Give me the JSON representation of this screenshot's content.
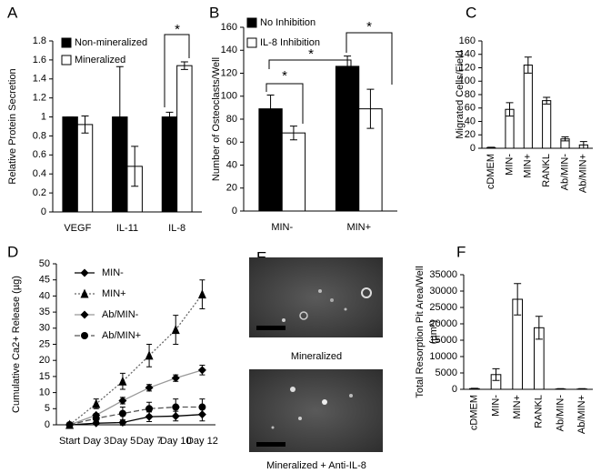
{
  "chart_data": [
    {
      "label": "A",
      "type": "bar",
      "ylabel": [
        "Relative Protein Secretion"
      ],
      "categories": [
        "VEGF",
        "IL-11",
        "IL-8"
      ],
      "series": [
        {
          "name": "Non-mineralized",
          "color": "#000000",
          "values": [
            1,
            1,
            1
          ],
          "errors": [
            0,
            0.53,
            0.05
          ]
        },
        {
          "name": "Mineralized",
          "color": "#ffffff",
          "values": [
            0.92,
            0.48,
            1.54
          ],
          "errors": [
            0.09,
            0.21,
            0.04
          ]
        }
      ],
      "ylim": [
        0,
        1.8
      ],
      "yticks": [
        0,
        0.2,
        0.4,
        0.6,
        0.8,
        1,
        1.2,
        1.4,
        1.6,
        1.8
      ],
      "annotations": [
        "*"
      ]
    },
    {
      "label": "B",
      "type": "bar",
      "ylabel": [
        "Number of Osteoclasts/Well"
      ],
      "categories": [
        "MIN-",
        "MIN+"
      ],
      "series": [
        {
          "name": "No Inhibition",
          "color": "#000000",
          "values": [
            89,
            126
          ],
          "errors": [
            12,
            9
          ]
        },
        {
          "name": "IL-8 Inhibition",
          "color": "#ffffff",
          "values": [
            68,
            89
          ],
          "errors": [
            6,
            17
          ]
        }
      ],
      "ylim": [
        0,
        160
      ],
      "yticks": [
        0,
        20,
        40,
        60,
        80,
        100,
        120,
        140,
        160
      ],
      "annotations": [
        "*",
        "*",
        "*"
      ]
    },
    {
      "label": "C",
      "type": "bar",
      "ylabel": [
        "Migrated Cells/Field"
      ],
      "categories": [
        "cDMEM",
        "MIN-",
        "MIN+",
        "RANKL",
        "Ab/MIN-",
        "Ab/MIN+"
      ],
      "series": [
        {
          "color": "#ffffff",
          "values": [
            1,
            58,
            124,
            71,
            14,
            5
          ],
          "errors": [
            0.5,
            10,
            12,
            5,
            3,
            5
          ]
        }
      ],
      "ylim": [
        0,
        160
      ],
      "yticks": [
        0,
        20,
        40,
        60,
        80,
        100,
        120,
        140,
        160
      ]
    },
    {
      "label": "D",
      "type": "line",
      "ylabel": [
        "Cumulative Ca2+ Release (µg)"
      ],
      "categories": [
        "Start",
        "Day 3",
        "Day 5",
        "Day 7",
        "Day 10",
        "Day 12"
      ],
      "series": [
        {
          "name": "MIN-",
          "color": "#000000",
          "marker": "diamond",
          "dash": "solid",
          "values": [
            0,
            0.5,
            0.7,
            2.5,
            2.7,
            3.2
          ],
          "errors": [
            0.3,
            0.5,
            0.8,
            1.5,
            1.5,
            2
          ]
        },
        {
          "name": "MIN+",
          "color": "#666666",
          "marker": "triangle",
          "dash": "dotted",
          "values": [
            0,
            6.5,
            13.5,
            21.5,
            29.5,
            40.5
          ],
          "errors": [
            0.3,
            1.5,
            2.5,
            3.5,
            4.5,
            4.5
          ]
        },
        {
          "name": "Ab/MIN-",
          "color": "#999999",
          "marker": "diamond",
          "dash": "solid",
          "values": [
            0,
            3,
            7.5,
            11.5,
            14.5,
            17
          ],
          "errors": [
            0.3,
            0.5,
            1,
            1,
            1,
            1.5
          ]
        },
        {
          "name": "Ab/MIN+",
          "color": "#555555",
          "marker": "circle",
          "dash": "dashed",
          "values": [
            0,
            2,
            3.5,
            5,
            5.5,
            5.5
          ],
          "errors": [
            0.3,
            1,
            2,
            2,
            2.5,
            2.5
          ]
        }
      ],
      "ylim": [
        0,
        50
      ],
      "yticks": [
        0,
        5,
        10,
        15,
        20,
        25,
        30,
        35,
        40,
        45,
        50
      ]
    },
    {
      "label": "F",
      "type": "bar",
      "ylabel": [
        "Total Resorption Pit Area/Well",
        "(µm²)"
      ],
      "categories": [
        "cDMEM",
        "MIN-",
        "MIN+",
        "RANKL",
        "Ab/MIN-",
        "Ab/MIN+"
      ],
      "series": [
        {
          "color": "#ffffff",
          "values": [
            200,
            4500,
            27500,
            18800,
            100,
            100
          ],
          "errors": [
            100,
            1800,
            4800,
            3500,
            100,
            100
          ]
        }
      ],
      "ylim": [
        0,
        35000
      ],
      "yticks": [
        0,
        5000,
        10000,
        15000,
        20000,
        25000,
        30000,
        35000
      ]
    }
  ],
  "panel_e": {
    "label": "E",
    "captions": [
      "Mineralized",
      "Mineralized + Anti-IL-8"
    ]
  }
}
